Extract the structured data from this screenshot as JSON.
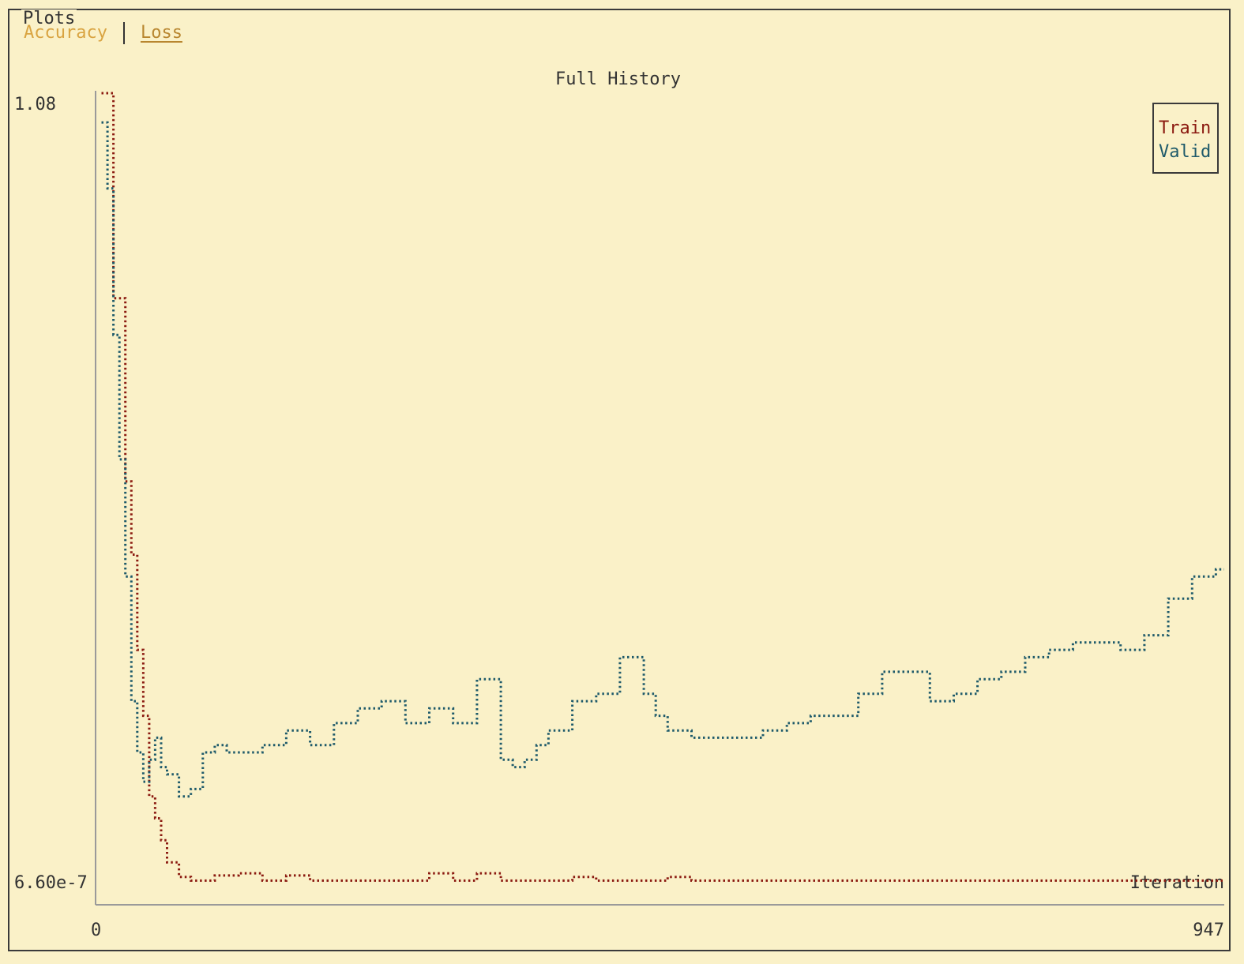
{
  "panel": {
    "title": "Plots"
  },
  "tabs": [
    {
      "label": "Accuracy",
      "active": false
    },
    {
      "label": "Loss",
      "active": true
    }
  ],
  "chart_data": {
    "type": "line",
    "title": "Full History",
    "xlabel": "Iteration",
    "ylabel": "",
    "x_ticks": [
      "0",
      "947"
    ],
    "y_ticks": [
      "1.08",
      "6.60e-7"
    ],
    "xlim": [
      0,
      947
    ],
    "ylim": [
      6.6e-07,
      1.08
    ],
    "grid": false,
    "legend_position": "top-right",
    "series": [
      {
        "name": "Train",
        "color": "#8b1a10",
        "x": [
          5,
          15,
          25,
          30,
          35,
          40,
          45,
          50,
          55,
          60,
          70,
          80,
          90,
          100,
          120,
          140,
          160,
          180,
          200,
          220,
          240,
          260,
          280,
          300,
          320,
          340,
          360,
          380,
          400,
          420,
          440,
          460,
          480,
          500,
          520,
          540,
          560,
          580,
          600,
          620,
          640,
          660,
          680,
          700,
          720,
          740,
          760,
          780,
          800,
          820,
          840,
          860,
          880,
          900,
          920,
          940,
          947
        ],
        "y": [
          1.08,
          0.8,
          0.55,
          0.45,
          0.32,
          0.23,
          0.12,
          0.09,
          0.06,
          0.03,
          0.01,
          0.005,
          0.005,
          0.012,
          0.015,
          0.005,
          0.012,
          0.005,
          0.005,
          0.005,
          0.005,
          0.005,
          0.015,
          0.005,
          0.015,
          0.005,
          0.005,
          0.005,
          0.01,
          0.005,
          0.005,
          0.005,
          0.01,
          0.005,
          0.005,
          0.005,
          0.005,
          0.005,
          0.005,
          0.005,
          0.005,
          0.005,
          0.005,
          0.005,
          0.005,
          0.005,
          0.005,
          0.005,
          0.005,
          0.005,
          0.005,
          0.005,
          0.005,
          0.005,
          0.005,
          0.005,
          0.005
        ]
      },
      {
        "name": "Valid",
        "color": "#1e5a6a",
        "x": [
          5,
          10,
          15,
          20,
          25,
          30,
          35,
          40,
          45,
          50,
          55,
          60,
          70,
          80,
          90,
          100,
          110,
          120,
          140,
          160,
          180,
          200,
          220,
          240,
          260,
          280,
          300,
          320,
          340,
          350,
          360,
          370,
          380,
          400,
          420,
          440,
          460,
          470,
          480,
          490,
          500,
          520,
          540,
          560,
          580,
          600,
          620,
          640,
          660,
          680,
          700,
          720,
          740,
          760,
          780,
          800,
          820,
          840,
          860,
          880,
          900,
          920,
          940,
          947
        ],
        "y": [
          1.04,
          0.95,
          0.75,
          0.58,
          0.42,
          0.25,
          0.18,
          0.14,
          0.17,
          0.2,
          0.16,
          0.15,
          0.12,
          0.13,
          0.18,
          0.19,
          0.18,
          0.18,
          0.19,
          0.21,
          0.19,
          0.22,
          0.24,
          0.25,
          0.22,
          0.24,
          0.22,
          0.28,
          0.17,
          0.16,
          0.17,
          0.19,
          0.21,
          0.25,
          0.26,
          0.31,
          0.26,
          0.23,
          0.21,
          0.21,
          0.2,
          0.2,
          0.2,
          0.21,
          0.22,
          0.23,
          0.23,
          0.26,
          0.29,
          0.29,
          0.25,
          0.26,
          0.28,
          0.29,
          0.31,
          0.32,
          0.33,
          0.33,
          0.32,
          0.34,
          0.39,
          0.42,
          0.43,
          0.43
        ]
      }
    ]
  }
}
